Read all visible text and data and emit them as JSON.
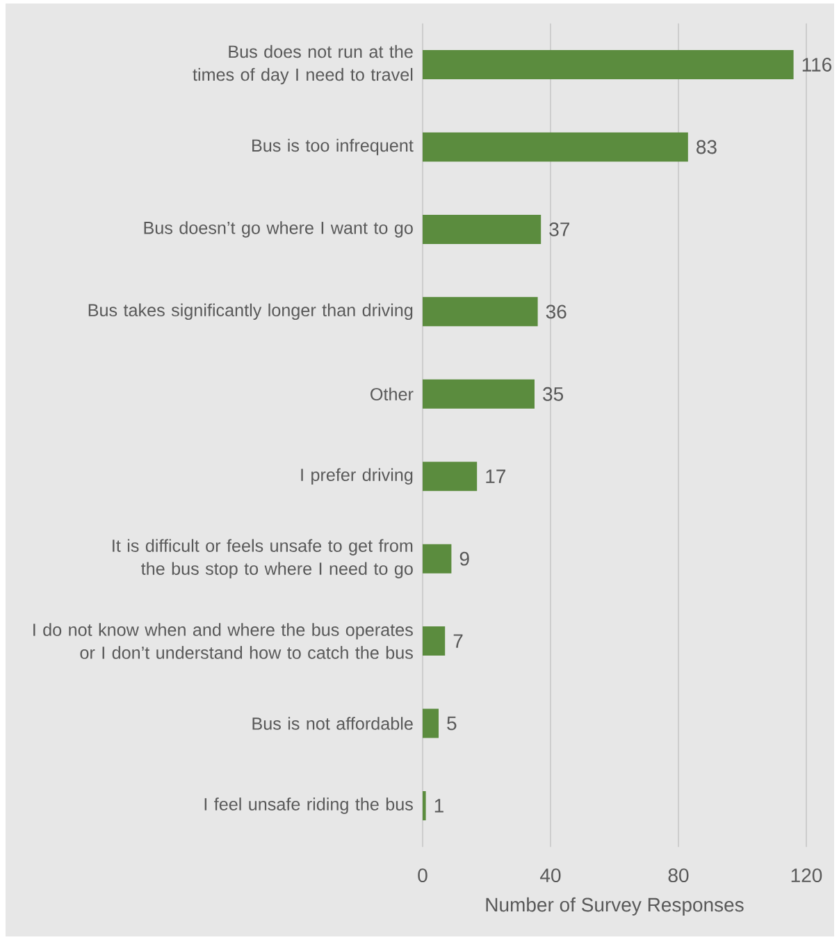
{
  "chart_data": {
    "type": "bar",
    "orientation": "horizontal",
    "xlabel": "Number of Survey Responses",
    "categories": [
      "Bus does not run at the times of day I need to travel",
      "Bus is too infrequent",
      "Bus doesn’t go where I want to go",
      "Bus takes significantly longer than driving",
      "Other",
      "I prefer driving",
      "It is difficult or feels unsafe to get from the bus stop to where I need to go",
      "I do not know when and where the bus operates or I don’t understand how to catch the bus",
      "Bus is not affordable",
      "I feel unsafe riding the bus"
    ],
    "values": [
      116,
      83,
      37,
      36,
      35,
      17,
      9,
      7,
      5,
      1
    ],
    "color": "#5b8c3e",
    "xlim": [
      0,
      120
    ],
    "xticks": [
      0,
      40,
      80,
      120
    ],
    "grid": "x",
    "data_labels": true
  }
}
